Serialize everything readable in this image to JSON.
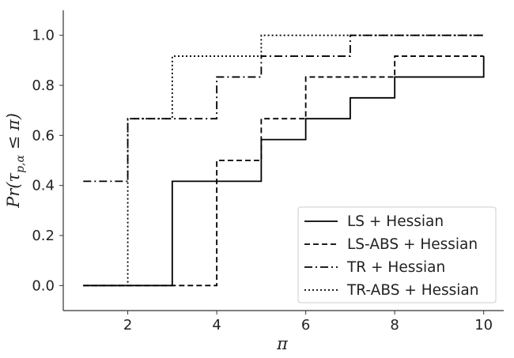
{
  "chart_data": {
    "type": "line",
    "step": "post",
    "xlabel": "π",
    "ylabel": "Pr(τ_{p,α} ≤ π)",
    "ylabel_parts": {
      "pre": "Pr(",
      "tau": "τ",
      "sub": "p,α",
      "post": " ≤ π)"
    },
    "xlim": [
      0.55,
      10.45
    ],
    "ylim": [
      -0.1,
      1.1
    ],
    "xticks": [
      2,
      4,
      6,
      8,
      10
    ],
    "yticks": [
      0.0,
      0.2,
      0.4,
      0.6,
      0.8,
      1.0
    ],
    "xtick_labels": [
      "2",
      "4",
      "6",
      "8",
      "10"
    ],
    "ytick_labels": [
      "0.0",
      "0.2",
      "0.4",
      "0.6",
      "0.8",
      "1.0"
    ],
    "grid": false,
    "legend_position": "bottom-right",
    "series": [
      {
        "name": "LS + Hessian",
        "style": "solid",
        "color": "#000000",
        "x": [
          1,
          3,
          5,
          6,
          7,
          8,
          10
        ],
        "y": [
          0.0,
          0.4167,
          0.5833,
          0.6667,
          0.75,
          0.8333,
          0.9167
        ]
      },
      {
        "name": "LS-ABS + Hessian",
        "style": "dashed",
        "color": "#000000",
        "x": [
          1,
          4,
          5,
          6,
          8,
          10
        ],
        "y": [
          0.0,
          0.5,
          0.6667,
          0.8333,
          0.9167,
          0.9167
        ]
      },
      {
        "name": "TR + Hessian",
        "style": "dashdot",
        "color": "#000000",
        "x": [
          1,
          2,
          4,
          5,
          7,
          10
        ],
        "y": [
          0.4167,
          0.6667,
          0.8333,
          0.9167,
          1.0,
          1.0
        ]
      },
      {
        "name": "TR-ABS + Hessian",
        "style": "dotted",
        "color": "#000000",
        "x": [
          1,
          2,
          3,
          5,
          10
        ],
        "y": [
          0.0,
          0.6667,
          0.9167,
          1.0,
          1.0
        ]
      }
    ]
  }
}
